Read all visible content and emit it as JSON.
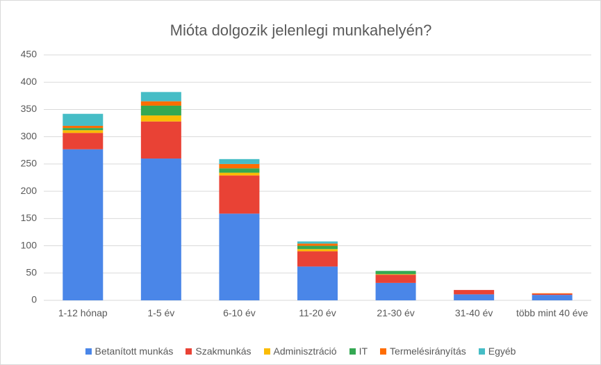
{
  "chart_data": {
    "type": "stacked_bar",
    "title": "Mióta dolgozik jelenlegi munkahelyén?",
    "categories": [
      "1-12 hónap",
      "1-5 év",
      "6-10 év",
      "11-20 év",
      "21-30 év",
      "31-40 év",
      "több mint 40 éve"
    ],
    "series": [
      {
        "name": "Betanított munkás",
        "color": "#4a86e8",
        "values": [
          277,
          260,
          159,
          62,
          32,
          11,
          10
        ]
      },
      {
        "name": "Szakmunkás",
        "color": "#e94235",
        "values": [
          30,
          68,
          70,
          28,
          15,
          8,
          2
        ]
      },
      {
        "name": "Adminisztráció",
        "color": "#fbbc04",
        "values": [
          5,
          11,
          5,
          4,
          1,
          0,
          0
        ]
      },
      {
        "name": "IT",
        "color": "#34a853",
        "values": [
          4,
          18,
          8,
          6,
          6,
          0,
          0
        ]
      },
      {
        "name": "Termelésirányítás",
        "color": "#ff6d01",
        "values": [
          4,
          8,
          8,
          4,
          0,
          0,
          1
        ]
      },
      {
        "name": "Egyéb",
        "color": "#46bdc6",
        "values": [
          22,
          17,
          9,
          4,
          0,
          0,
          0
        ]
      }
    ],
    "ylim": [
      0,
      450
    ],
    "yticks": [
      0,
      50,
      100,
      150,
      200,
      250,
      300,
      350,
      400,
      450
    ],
    "grid": true
  }
}
